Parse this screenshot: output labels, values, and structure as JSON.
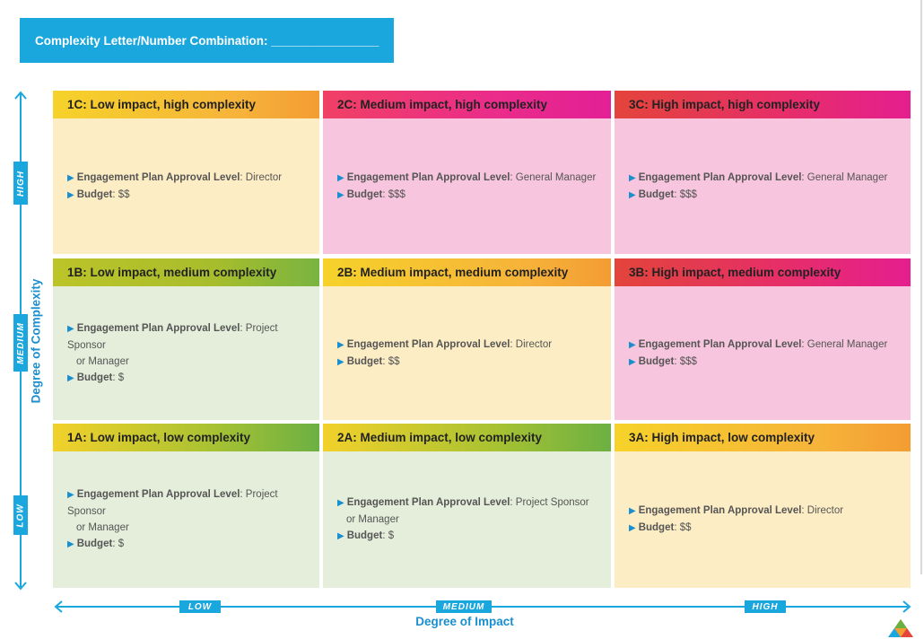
{
  "header": {
    "label": "Complexity Letter/Number Combination: ________________"
  },
  "axes": {
    "vertical": {
      "title": "Degree of Complexity",
      "levels": [
        "HIGH",
        "MEDIUM",
        "LOW"
      ]
    },
    "horizontal": {
      "title": "Degree of Impact",
      "levels": [
        "LOW",
        "MEDIUM",
        "HIGH"
      ]
    }
  },
  "cells": {
    "c1C": {
      "title": "1C: Low impact, high complexity",
      "approval_key": "Engagement Plan Approval Level",
      "approval": ": Director",
      "approval_cont": "",
      "budget_key": "Budget",
      "budget": ": $$"
    },
    "c2C": {
      "title": "2C: Medium impact, high complexity",
      "approval_key": "Engagement Plan Approval Level",
      "approval": ": General Manager",
      "approval_cont": "",
      "budget_key": "Budget",
      "budget": ": $$$"
    },
    "c3C": {
      "title": "3C: High impact, high complexity",
      "approval_key": "Engagement Plan Approval Level",
      "approval": ": General Manager",
      "approval_cont": "",
      "budget_key": "Budget",
      "budget": ": $$$"
    },
    "c1B": {
      "title": "1B: Low impact, medium complexity",
      "approval_key": "Engagement Plan Approval Level",
      "approval": ": Project Sponsor",
      "approval_cont": "or Manager",
      "budget_key": "Budget",
      "budget": ": $"
    },
    "c2B": {
      "title": "2B: Medium impact, medium complexity",
      "approval_key": "Engagement Plan Approval Level",
      "approval": ": Director",
      "approval_cont": "",
      "budget_key": "Budget",
      "budget": ": $$"
    },
    "c3B": {
      "title": "3B: High impact, medium complexity",
      "approval_key": "Engagement Plan Approval Level",
      "approval": ": General Manager",
      "approval_cont": "",
      "budget_key": "Budget",
      "budget": ": $$$"
    },
    "c1A": {
      "title": "1A: Low impact, low complexity",
      "approval_key": "Engagement Plan Approval Level",
      "approval": ": Project Sponsor",
      "approval_cont": "or Manager",
      "budget_key": "Budget",
      "budget": ": $"
    },
    "c2A": {
      "title": "2A: Medium impact, low complexity",
      "approval_key": "Engagement Plan Approval Level",
      "approval": ": Project Sponsor",
      "approval_cont": "or Manager",
      "budget_key": "Budget",
      "budget": ": $"
    },
    "c3A": {
      "title": "3A: High impact, low complexity",
      "approval_key": "Engagement Plan Approval Level",
      "approval": ": Director",
      "approval_cont": "",
      "budget_key": "Budget",
      "budget": ": $$"
    }
  },
  "colors": {
    "accent": "#1aa7de",
    "bullet": "#1a8fd0",
    "yellow_fill": "#fdedc4",
    "green_fill": "#e5eedb",
    "pink_fill": "#f7c5dd"
  },
  "icons": {
    "bullet": "triangle-right-icon",
    "logo": "triangle-logo-icon"
  }
}
